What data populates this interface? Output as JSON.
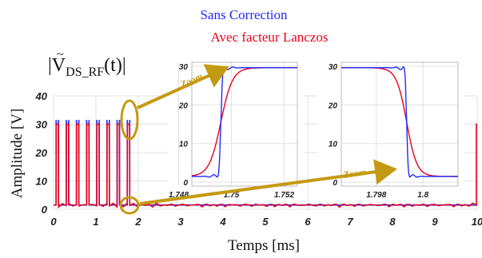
{
  "legend": {
    "blue_label": "Sans Correction",
    "red_label": "Avec facteur Lanczos"
  },
  "colors": {
    "blue": "#1f2bff",
    "red": "#e8001c",
    "accent": "#c49a12",
    "grid": "#e2e2e2"
  },
  "chart_data": [
    {
      "type": "line",
      "title": "|Ṽ_DS_RF(t)|",
      "title_parts": {
        "main": "|V",
        "sub": "DS_RF",
        "tail": "(t)|"
      },
      "xlabel": "Temps [ms]",
      "ylabel": "Amplitude [V]",
      "xlim": [
        0,
        10
      ],
      "ylim": [
        0,
        40
      ],
      "xticks": [
        0,
        1,
        2,
        3,
        4,
        5,
        6,
        7,
        8,
        9,
        10
      ],
      "yticks": [
        0,
        10,
        20,
        30,
        40
      ],
      "grid": true,
      "pulses": {
        "start_ms": [
          0.06,
          0.3,
          0.54,
          0.78,
          1.02,
          1.26,
          1.5,
          1.74
        ],
        "width_ms": 0.058,
        "level_v": 30,
        "blue_peak_v": 31.5,
        "final_red_edge_ms": 9.98
      },
      "baseline_v": 1.5,
      "series": [
        {
          "name": "Sans Correction",
          "color": "blue"
        },
        {
          "name": "Avec facteur Lanczos",
          "color": "red"
        }
      ]
    },
    {
      "type": "line",
      "annotation": "Zoom",
      "xlim": [
        1.7485,
        1.7525
      ],
      "ylim": [
        -1,
        31
      ],
      "xticks": [
        1.748,
        1.75,
        1.752
      ],
      "xticklabels": [
        "1.748",
        "1.75",
        "1.752"
      ],
      "yticks": [
        0,
        10,
        20,
        30
      ],
      "grid": true,
      "edge": "rising",
      "edge_center_ms": 1.7496
    },
    {
      "type": "line",
      "annotation": "Zoom",
      "xlim": [
        1.7965,
        1.8015
      ],
      "ylim": [
        -1,
        31
      ],
      "xticks": [
        1.798,
        1.8
      ],
      "xticklabels": [
        "1.798",
        "1.8"
      ],
      "yticks": [
        0,
        10,
        20,
        30
      ],
      "grid": true,
      "edge": "falling",
      "edge_center_ms": 1.7993
    }
  ]
}
